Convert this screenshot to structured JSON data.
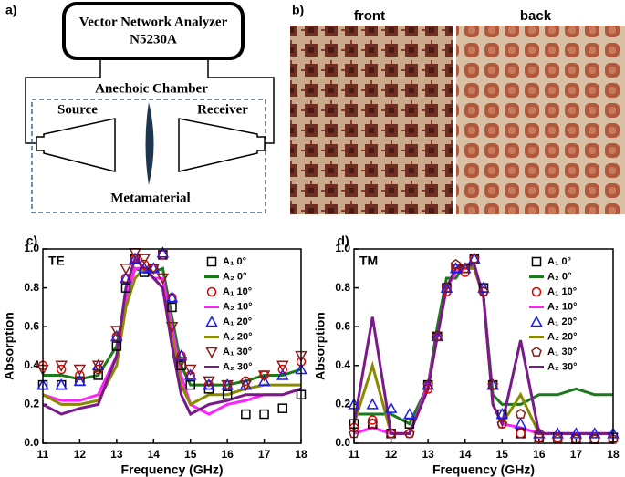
{
  "panel_a": {
    "label": "a)",
    "analyzer": "Vector Network Analyzer",
    "model": "N5230A",
    "chamber": "Anechoic Chamber",
    "source": "Source",
    "receiver": "Receiver",
    "sample": "Metamaterial"
  },
  "panel_b": {
    "label": "b)",
    "front": "front",
    "back": "back"
  },
  "chart_data": [
    {
      "type": "line",
      "panel_label": "c)",
      "annotation": "TE",
      "xlabel": "Frequency (GHz)",
      "ylabel": "Absorption",
      "x": [
        11,
        11.5,
        12,
        12.5,
        13,
        13.25,
        13.5,
        13.75,
        14,
        14.25,
        14.5,
        14.75,
        15,
        15.5,
        16,
        16.5,
        17,
        17.5,
        18
      ],
      "xlim": [
        11,
        18
      ],
      "xticks": [
        11,
        12,
        13,
        14,
        15,
        16,
        17,
        18
      ],
      "ylim": [
        0,
        1
      ],
      "yticks": [
        {
          "value": 0,
          "label": "0.0"
        },
        0.2,
        0.4,
        0.6,
        0.8,
        {
          "value": 1,
          "label": "1.0"
        }
      ],
      "series": [
        {
          "name": "A₁ 0°",
          "color": "#000000",
          "marker": "square",
          "values": [
            0.3,
            0.3,
            0.32,
            0.35,
            0.5,
            0.8,
            0.95,
            0.88,
            0.9,
            0.97,
            0.7,
            0.4,
            0.3,
            0.28,
            0.25,
            0.15,
            0.15,
            0.18,
            0.25
          ]
        },
        {
          "name": "A₂ 0°",
          "color": "#1a7a1a",
          "marker": "none",
          "values": [
            0.35,
            0.35,
            0.33,
            0.35,
            0.5,
            0.75,
            0.9,
            0.88,
            0.88,
            0.9,
            0.65,
            0.4,
            0.3,
            0.3,
            0.3,
            0.32,
            0.35,
            0.35,
            0.38
          ]
        },
        {
          "name": "A₁ 10°",
          "color": "#e00000",
          "marker": "circle",
          "values": [
            0.4,
            0.38,
            0.35,
            0.38,
            0.55,
            0.85,
            0.95,
            0.92,
            0.9,
            0.97,
            0.75,
            0.45,
            0.35,
            0.3,
            0.3,
            0.32,
            0.35,
            0.38,
            0.42
          ]
        },
        {
          "name": "A₂ 10°",
          "color": "#ff22ff",
          "marker": "none",
          "values": [
            0.25,
            0.22,
            0.22,
            0.25,
            0.45,
            0.75,
            0.9,
            0.9,
            0.85,
            0.85,
            0.6,
            0.35,
            0.2,
            0.15,
            0.2,
            0.22,
            0.25,
            0.25,
            0.28
          ]
        },
        {
          "name": "A₁ 20°",
          "color": "#1a1aee",
          "marker": "triangle",
          "values": [
            0.3,
            0.3,
            0.32,
            0.4,
            0.55,
            0.85,
            0.95,
            0.9,
            0.9,
            0.98,
            0.75,
            0.45,
            0.35,
            0.3,
            0.3,
            0.3,
            0.32,
            0.35,
            0.38
          ]
        },
        {
          "name": "A₂ 20°",
          "color": "#8a8a00",
          "marker": "none",
          "values": [
            0.25,
            0.2,
            0.2,
            0.22,
            0.4,
            0.7,
            0.85,
            0.9,
            0.85,
            0.8,
            0.55,
            0.3,
            0.2,
            0.25,
            0.25,
            0.28,
            0.3,
            0.3,
            0.3
          ]
        },
        {
          "name": "A₁ 30°",
          "color": "#8b1a1a",
          "marker": "inverted-triangle",
          "values": [
            0.38,
            0.4,
            0.38,
            0.4,
            0.58,
            0.9,
            0.98,
            0.95,
            0.9,
            0.85,
            0.6,
            0.42,
            0.38,
            0.32,
            0.3,
            0.3,
            0.35,
            0.4,
            0.45
          ]
        },
        {
          "name": "A₂ 30°",
          "color": "#7a1a8a",
          "marker": "none",
          "values": [
            0.2,
            0.15,
            0.18,
            0.2,
            0.45,
            0.8,
            0.95,
            0.9,
            0.85,
            0.8,
            0.5,
            0.25,
            0.15,
            0.2,
            0.22,
            0.25,
            0.25,
            0.25,
            0.28
          ]
        }
      ]
    },
    {
      "type": "line",
      "panel_label": "d)",
      "annotation": "TM",
      "xlabel": "Frequency (GHz)",
      "ylabel": "Absorption",
      "x": [
        11,
        11.5,
        12,
        12.5,
        13,
        13.25,
        13.5,
        13.75,
        14,
        14.25,
        14.5,
        14.75,
        15,
        15.5,
        16,
        16.5,
        17,
        17.5,
        18
      ],
      "xlim": [
        11,
        18
      ],
      "xticks": [
        11,
        12,
        13,
        14,
        15,
        16,
        17,
        18
      ],
      "ylim": [
        0,
        1
      ],
      "yticks": [
        {
          "value": 0,
          "label": "0.0"
        },
        0.2,
        0.4,
        0.6,
        0.8,
        {
          "value": 1,
          "label": "1.0"
        }
      ],
      "series": [
        {
          "name": "A₁ 0°",
          "color": "#000000",
          "marker": "square",
          "values": [
            0.1,
            0.1,
            0.05,
            0.1,
            0.3,
            0.55,
            0.8,
            0.9,
            0.9,
            0.95,
            0.8,
            0.3,
            0.15,
            0.05,
            0.03,
            0.03,
            0.02,
            0.02,
            0.03
          ]
        },
        {
          "name": "A₂ 0°",
          "color": "#1a7a1a",
          "marker": "none",
          "values": [
            0.15,
            0.15,
            0.15,
            0.1,
            0.3,
            0.6,
            0.85,
            0.85,
            0.92,
            0.9,
            0.75,
            0.25,
            0.2,
            0.2,
            0.25,
            0.25,
            0.28,
            0.25,
            0.25
          ]
        },
        {
          "name": "A₁ 10°",
          "color": "#e00000",
          "marker": "circle",
          "values": [
            0.08,
            0.12,
            0.05,
            0.05,
            0.28,
            0.55,
            0.78,
            0.9,
            0.88,
            0.95,
            0.78,
            0.3,
            0.1,
            0.05,
            0.03,
            0.03,
            0.02,
            0.02,
            0.02
          ]
        },
        {
          "name": "A₂ 10°",
          "color": "#ff22ff",
          "marker": "none",
          "values": [
            0.05,
            0.08,
            0.05,
            0.05,
            0.3,
            0.55,
            0.8,
            0.88,
            0.9,
            0.9,
            0.75,
            0.2,
            0.1,
            0.08,
            0.05,
            0.05,
            0.05,
            0.05,
            0.05
          ]
        },
        {
          "name": "A₁ 20°",
          "color": "#1a1aee",
          "marker": "triangle",
          "values": [
            0.2,
            0.2,
            0.18,
            0.15,
            0.3,
            0.55,
            0.8,
            0.9,
            0.9,
            0.95,
            0.8,
            0.3,
            0.15,
            0.1,
            0.05,
            0.05,
            0.05,
            0.05,
            0.05
          ]
        },
        {
          "name": "A₂ 20°",
          "color": "#8a8a00",
          "marker": "none",
          "values": [
            0.1,
            0.4,
            0.05,
            0.05,
            0.28,
            0.55,
            0.8,
            0.9,
            0.9,
            0.9,
            0.75,
            0.2,
            0.1,
            0.25,
            0.05,
            0.05,
            0.05,
            0.05,
            0.05
          ]
        },
        {
          "name": "A₁ 30°",
          "color": "#8b1a1a",
          "marker": "pentagon",
          "values": [
            0.05,
            0.1,
            0.05,
            0.05,
            0.3,
            0.55,
            0.8,
            0.92,
            0.9,
            0.95,
            0.78,
            0.3,
            0.1,
            0.15,
            0.05,
            0.02,
            0.02,
            0.02,
            0.02
          ]
        },
        {
          "name": "A₂ 30°",
          "color": "#7a1a8a",
          "marker": "none",
          "values": [
            0.1,
            0.65,
            0.05,
            0.05,
            0.28,
            0.55,
            0.8,
            0.9,
            0.92,
            0.92,
            0.75,
            0.2,
            0.1,
            0.53,
            0.05,
            0.05,
            0.05,
            0.05,
            0.05
          ]
        }
      ]
    }
  ]
}
